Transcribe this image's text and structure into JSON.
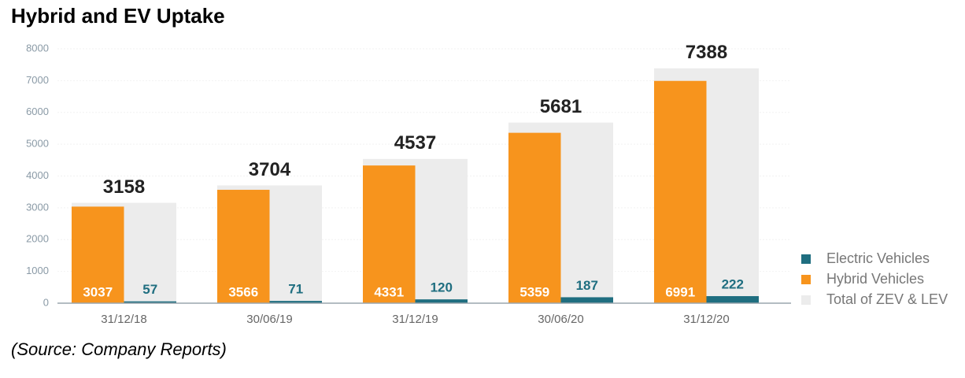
{
  "chart_data": {
    "type": "bar",
    "title": "Hybrid and EV Uptake",
    "source": "(Source: Company Reports)",
    "categories": [
      "31/12/18",
      "30/06/19",
      "31/12/19",
      "30/06/20",
      "31/12/20"
    ],
    "series": [
      {
        "name": "Electric Vehicles",
        "color": "#1f6e80",
        "values": [
          57,
          71,
          120,
          187,
          222
        ]
      },
      {
        "name": "Hybrid Vehicles",
        "color": "#f7941d",
        "values": [
          3037,
          3566,
          4331,
          5359,
          6991
        ]
      },
      {
        "name": "Total of ZEV & LEV",
        "color": "#ececec",
        "values": [
          3158,
          3704,
          4537,
          5681,
          7388
        ]
      }
    ],
    "ylim": [
      0,
      8000
    ],
    "yticks": [
      0,
      1000,
      2000,
      3000,
      4000,
      5000,
      6000,
      7000,
      8000
    ],
    "grid": true,
    "legend": "right"
  }
}
